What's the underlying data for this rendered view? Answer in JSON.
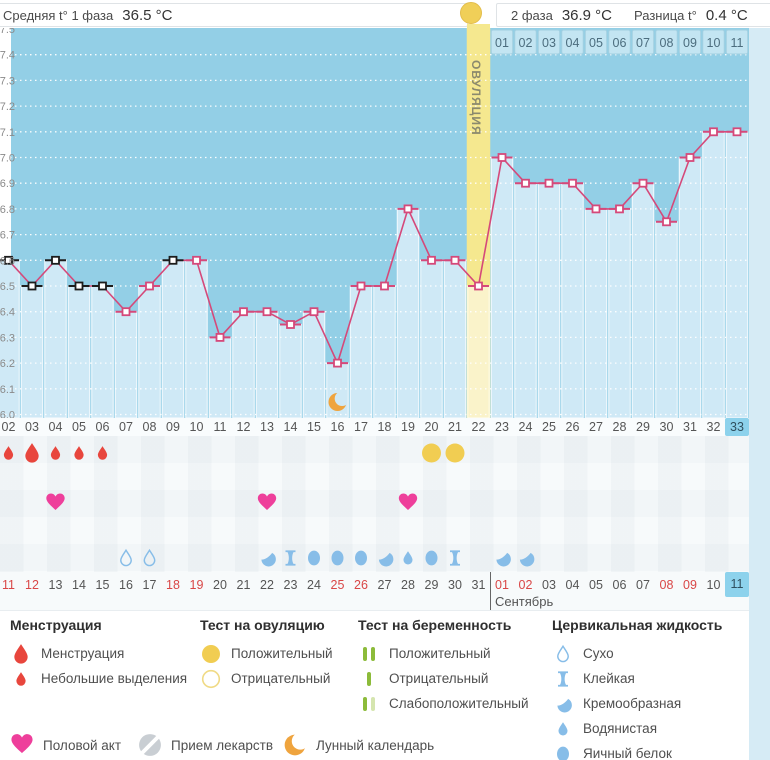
{
  "header": {
    "phase1_label": "Средняя t° 1 фаза",
    "phase1_value": "36.5 °C",
    "phase2_label": "2 фаза",
    "phase2_value": "36.9 °C",
    "diff_label": "Разница t°",
    "diff_value": "0.4 °C"
  },
  "ovulation_band_label": "ОВУЛЯЦИЯ",
  "dpo_days": [
    "01",
    "02",
    "03",
    "04",
    "05",
    "06",
    "07",
    "08",
    "09",
    "10",
    "11"
  ],
  "cycle_day_labels": [
    "02",
    "03",
    "04",
    "05",
    "06",
    "07",
    "08",
    "09",
    "10",
    "11",
    "12",
    "13",
    "14",
    "15",
    "16",
    "17",
    "18",
    "19",
    "20",
    "21",
    "22",
    "23",
    "24",
    "25",
    "26",
    "27",
    "28",
    "29",
    "30",
    "31",
    "32",
    "33"
  ],
  "highlighted_cycle_day": "33",
  "chart_data": {
    "type": "line",
    "ylabel_ticks": [
      "37.5",
      "37.4",
      "37.3",
      "37.2",
      "37.1",
      "37.0",
      "36.9",
      "36.8",
      "36.7",
      "36.6",
      "36.5",
      "36.4",
      "36.3",
      "36.2",
      "36.1",
      "36.0"
    ],
    "ylim": [
      36.0,
      37.5
    ],
    "grid": "horizontal-dotted",
    "ovulation_day": 22,
    "moon_day": 16,
    "points": [
      {
        "day": 2,
        "temp": 36.6,
        "marker": "black"
      },
      {
        "day": 3,
        "temp": 36.5,
        "marker": "black"
      },
      {
        "day": 4,
        "temp": 36.6,
        "marker": "black"
      },
      {
        "day": 5,
        "temp": 36.5,
        "marker": "black"
      },
      {
        "day": 6,
        "temp": 36.5,
        "marker": "black"
      },
      {
        "day": 7,
        "temp": 36.4,
        "marker": "pink"
      },
      {
        "day": 8,
        "temp": 36.5,
        "marker": "pink"
      },
      {
        "day": 9,
        "temp": 36.6,
        "marker": "black"
      },
      {
        "day": 10,
        "temp": 36.6,
        "marker": "pink"
      },
      {
        "day": 11,
        "temp": 36.3,
        "marker": "pink"
      },
      {
        "day": 12,
        "temp": 36.4,
        "marker": "pink"
      },
      {
        "day": 13,
        "temp": 36.4,
        "marker": "pink"
      },
      {
        "day": 14,
        "temp": 36.35,
        "marker": "pink"
      },
      {
        "day": 15,
        "temp": 36.4,
        "marker": "pink"
      },
      {
        "day": 16,
        "temp": 36.2,
        "marker": "pink"
      },
      {
        "day": 17,
        "temp": 36.5,
        "marker": "pink"
      },
      {
        "day": 18,
        "temp": 36.5,
        "marker": "pink"
      },
      {
        "day": 19,
        "temp": 36.8,
        "marker": "pink"
      },
      {
        "day": 20,
        "temp": 36.6,
        "marker": "pink"
      },
      {
        "day": 21,
        "temp": 36.6,
        "marker": "pink"
      },
      {
        "day": 22,
        "temp": 36.5,
        "marker": "pink"
      },
      {
        "day": 23,
        "temp": 37.0,
        "marker": "pink"
      },
      {
        "day": 24,
        "temp": 36.9,
        "marker": "pink"
      },
      {
        "day": 25,
        "temp": 36.9,
        "marker": "pink"
      },
      {
        "day": 26,
        "temp": 36.9,
        "marker": "pink"
      },
      {
        "day": 27,
        "temp": 36.8,
        "marker": "pink"
      },
      {
        "day": 28,
        "temp": 36.8,
        "marker": "pink"
      },
      {
        "day": 29,
        "temp": 36.9,
        "marker": "pink"
      },
      {
        "day": 30,
        "temp": 36.75,
        "marker": "pink"
      },
      {
        "day": 31,
        "temp": 37.0,
        "marker": "pink"
      },
      {
        "day": 32,
        "temp": 37.1,
        "marker": "pink"
      },
      {
        "day": 33,
        "temp": 37.1,
        "marker": "pink"
      }
    ]
  },
  "rows": {
    "menstruation": [
      {
        "day": 2,
        "size": "small"
      },
      {
        "day": 3,
        "size": "large"
      },
      {
        "day": 4,
        "size": "small"
      },
      {
        "day": 5,
        "size": "small"
      },
      {
        "day": 6,
        "size": "small"
      }
    ],
    "ovulation_tests": [
      {
        "day": 20,
        "result": "positive"
      },
      {
        "day": 21,
        "result": "positive"
      }
    ],
    "intercourse_days": [
      4,
      13,
      19
    ],
    "cervical": [
      {
        "day": 7,
        "type": "dry"
      },
      {
        "day": 8,
        "type": "dry"
      },
      {
        "day": 13,
        "type": "creamy"
      },
      {
        "day": 14,
        "type": "sticky"
      },
      {
        "day": 15,
        "type": "eggwhite"
      },
      {
        "day": 16,
        "type": "eggwhite"
      },
      {
        "day": 17,
        "type": "eggwhite"
      },
      {
        "day": 18,
        "type": "creamy"
      },
      {
        "day": 19,
        "type": "watery"
      },
      {
        "day": 20,
        "type": "eggwhite"
      },
      {
        "day": 21,
        "type": "sticky"
      },
      {
        "day": 23,
        "type": "creamy"
      },
      {
        "day": 24,
        "type": "creamy"
      }
    ]
  },
  "dates": [
    {
      "t": "11",
      "red": true
    },
    {
      "t": "12",
      "red": true
    },
    {
      "t": "13"
    },
    {
      "t": "14"
    },
    {
      "t": "15"
    },
    {
      "t": "16"
    },
    {
      "t": "17"
    },
    {
      "t": "18",
      "red": true
    },
    {
      "t": "19",
      "red": true
    },
    {
      "t": "20"
    },
    {
      "t": "21"
    },
    {
      "t": "22"
    },
    {
      "t": "23"
    },
    {
      "t": "24"
    },
    {
      "t": "25",
      "red": true
    },
    {
      "t": "26",
      "red": true
    },
    {
      "t": "27"
    },
    {
      "t": "28"
    },
    {
      "t": "29"
    },
    {
      "t": "30"
    },
    {
      "t": "31"
    },
    {
      "t": "01",
      "red": true
    },
    {
      "t": "02",
      "red": true
    },
    {
      "t": "03"
    },
    {
      "t": "04"
    },
    {
      "t": "05"
    },
    {
      "t": "06"
    },
    {
      "t": "07"
    },
    {
      "t": "08",
      "red": true
    },
    {
      "t": "09",
      "red": true
    },
    {
      "t": "10"
    },
    {
      "t": "11",
      "highlight": true
    }
  ],
  "month_label": "Сентябрь",
  "month_starts_at_day": 23,
  "legend": {
    "columns": [
      {
        "title": "Менструация",
        "items": [
          {
            "icon": "drop-large",
            "label": "Менструация"
          },
          {
            "icon": "drop-small",
            "label": "Небольшие выделения"
          }
        ]
      },
      {
        "title": "Тест на овуляцию",
        "items": [
          {
            "icon": "circle-filled",
            "label": "Положительный"
          },
          {
            "icon": "circle-outline",
            "label": "Отрицательный"
          }
        ]
      },
      {
        "title": "Тест на беременность",
        "items": [
          {
            "icon": "bars-positive",
            "label": "Положительный"
          },
          {
            "icon": "bar-negative",
            "label": "Отрицательный"
          },
          {
            "icon": "bars-weak",
            "label": "Слабоположительный"
          }
        ]
      },
      {
        "title": "Цервикальная жидкость",
        "items": [
          {
            "icon": "cf-dry",
            "label": "Сухо"
          },
          {
            "icon": "cf-sticky",
            "label": "Клейкая"
          },
          {
            "icon": "cf-creamy",
            "label": "Кремообразная"
          },
          {
            "icon": "cf-watery",
            "label": "Водянистая"
          },
          {
            "icon": "cf-eggwhite",
            "label": "Яичный белок"
          }
        ]
      }
    ],
    "bottom_items": [
      {
        "icon": "heart",
        "label": "Половой акт"
      },
      {
        "icon": "pill",
        "label": "Прием лекарств"
      },
      {
        "icon": "moon",
        "label": "Лунный календарь"
      }
    ]
  },
  "colors": {
    "chart_bg": "#93cfe6",
    "outside_bg": "#d8edf7",
    "bar": "#cfe9f6",
    "ovulation_band": "#f5e88f",
    "ovulation_bar": "#faf3ca",
    "band_text": "#8b8a6d",
    "line": "#d5497a",
    "marker_black": "#1c1c1c",
    "grid": "#ffffff",
    "dpo_bg": "#c3e5f2",
    "dpo_border": "#a2cfe0",
    "dpo_text": "#4c6d7e",
    "tick_text": "#8a8a8a",
    "highlight_blue": "#8dd2ec",
    "mens_red": "#e8463d",
    "test_yellow": "#f1cd52",
    "test_yellow_outline": "#f0da85",
    "heart_pink": "#ee3f9b",
    "cf_blue": "#87bde8",
    "preg_green": "#8cbb3a",
    "preg_pale": "#d5e5af",
    "pill_gray": "#c9ced3",
    "moon_orange": "#efa43e"
  }
}
